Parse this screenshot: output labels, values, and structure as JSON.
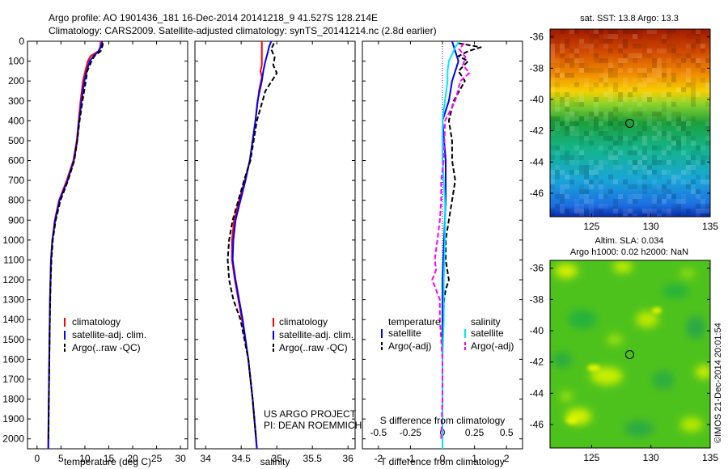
{
  "header": {
    "line1": "Argo profile: AO 1901436_181 16-Dec-2014 20141218_9 41.527S 128.214E",
    "line2": "Climatology: CARS2009. Satellite-adjusted climatology: synTS_20141214.nc (2.8d earlier)"
  },
  "colors": {
    "climatology": "#ff0000",
    "satellite": "#0000ff",
    "argo": "#000000",
    "salinity_satellite": "#00e5ff",
    "salinity_argo": "#ff00ff"
  },
  "chart_data": [
    {
      "id": "temp",
      "type": "line",
      "xlabel": "temperature (deg C)",
      "ylabel": "",
      "xlim": [
        -2,
        31.5
      ],
      "ylim": [
        2050,
        0
      ],
      "xticks": [
        0,
        5,
        10,
        15,
        20,
        25,
        30
      ],
      "yticks": [
        0,
        100,
        200,
        300,
        400,
        500,
        600,
        700,
        800,
        900,
        1000,
        1100,
        1200,
        1300,
        1400,
        1500,
        1600,
        1700,
        1800,
        1900,
        2000
      ],
      "legend": [
        "climatology",
        "satellite-adj. clim.",
        "Argo(..raw -QC)"
      ],
      "legend_position": "lower-center",
      "series": [
        {
          "name": "climatology",
          "color": "#ff0000",
          "dash": "none",
          "depth": [
            0,
            10,
            30,
            50,
            75,
            100,
            150,
            200,
            300,
            400,
            500,
            600,
            700,
            800,
            900,
            1000,
            1100,
            1200,
            1300,
            1500,
            1700,
            1900,
            2050
          ],
          "values": [
            13.3,
            13.3,
            13.2,
            12.8,
            11.2,
            10.6,
            10.1,
            9.6,
            9.1,
            8.7,
            8.3,
            7.6,
            6.2,
            4.6,
            3.7,
            3.2,
            2.9,
            2.8,
            2.7,
            2.6,
            2.5,
            2.4,
            2.35
          ]
        },
        {
          "name": "satellite-adj. clim.",
          "color": "#0000ff",
          "dash": "none",
          "depth": [
            0,
            10,
            30,
            50,
            75,
            100,
            150,
            200,
            300,
            400,
            500,
            600,
            700,
            800,
            900,
            1000,
            1100,
            1200,
            1300,
            1500,
            1700,
            1900,
            2050
          ],
          "values": [
            13.6,
            13.6,
            13.3,
            12.9,
            11.8,
            11.0,
            10.4,
            9.9,
            9.3,
            8.8,
            8.4,
            7.7,
            6.4,
            4.7,
            3.8,
            3.2,
            2.9,
            2.8,
            2.7,
            2.6,
            2.5,
            2.4,
            2.35
          ]
        },
        {
          "name": "Argo(..raw -QC)",
          "color": "#000000",
          "dash": "6,3",
          "depth": [
            10,
            30,
            50,
            75,
            100,
            150,
            200,
            300,
            400,
            500,
            600,
            700,
            800,
            900,
            1000,
            1100,
            1200,
            1300,
            1500,
            1700,
            1900,
            2000
          ],
          "values": [
            13.8,
            13.6,
            13.3,
            12.0,
            11.4,
            10.5,
            10.2,
            9.5,
            8.9,
            8.4,
            7.8,
            6.5,
            4.9,
            3.9,
            3.3,
            3.0,
            2.85,
            2.75,
            2.62,
            2.52,
            2.43,
            2.38
          ]
        }
      ]
    },
    {
      "id": "sal",
      "type": "line",
      "xlabel": "salinity",
      "ylabel": "",
      "xlim": [
        33.85,
        36.1
      ],
      "ylim": [
        2050,
        0
      ],
      "xticks": [
        "34",
        "34.5",
        "35",
        "35.5",
        "36"
      ],
      "legend": [
        "climatology",
        "satellite-adj. clim.",
        "Argo(..raw -QC)"
      ],
      "legend_position": "lower-right",
      "annotation": [
        "US ARGO PROJECT",
        "PI: DEAN ROEMMICH"
      ],
      "series": [
        {
          "name": "climatology",
          "color": "#ff0000",
          "dash": "none",
          "depth": [
            0,
            50,
            120,
            150,
            180,
            250,
            400,
            600,
            700,
            800,
            900,
            1000,
            1100,
            1200,
            1400,
            1600,
            1800,
            2050
          ],
          "values": [
            34.79,
            34.79,
            34.79,
            34.77,
            34.79,
            34.75,
            34.7,
            34.62,
            34.55,
            34.47,
            34.4,
            34.37,
            34.37,
            34.41,
            34.51,
            34.6,
            34.66,
            34.72
          ]
        },
        {
          "name": "satellite-adj. clim.",
          "color": "#0000ff",
          "dash": "none",
          "depth": [
            0,
            30,
            60,
            100,
            150,
            200,
            300,
            400,
            600,
            700,
            800,
            900,
            1000,
            1100,
            1200,
            1400,
            1600,
            1800,
            2050
          ],
          "values": [
            34.92,
            34.89,
            34.87,
            34.84,
            34.81,
            34.79,
            34.73,
            34.7,
            34.62,
            34.56,
            34.49,
            34.42,
            34.39,
            34.38,
            34.42,
            34.52,
            34.6,
            34.66,
            34.72
          ]
        },
        {
          "name": "Argo(..raw -QC)",
          "color": "#000000",
          "dash": "6,3",
          "depth": [
            10,
            40,
            80,
            120,
            160,
            200,
            250,
            300,
            400,
            600,
            700,
            800,
            900,
            1000,
            1100,
            1150,
            1200,
            1300,
            1400,
            1600,
            1800,
            2000
          ],
          "values": [
            34.96,
            34.92,
            34.97,
            34.95,
            35.0,
            34.93,
            34.84,
            34.8,
            34.72,
            34.63,
            34.54,
            34.46,
            34.38,
            34.33,
            34.31,
            34.32,
            34.33,
            34.39,
            34.49,
            34.6,
            34.66,
            34.71
          ]
        }
      ]
    },
    {
      "id": "diff",
      "type": "line",
      "xlabel": "T difference from climatology",
      "x2label": "S difference from climatology",
      "ylabel": "",
      "xlim": [
        -2.5,
        2.5
      ],
      "x2lim": [
        -0.625,
        0.625
      ],
      "ylim": [
        2050,
        0
      ],
      "xticks": [
        "-2",
        "-1",
        "0",
        "1",
        "2"
      ],
      "x2ticks": [
        "-0.5",
        "-0.25",
        "0",
        "0.25",
        "0.5"
      ],
      "legend_groups": [
        {
          "title": "temperature",
          "items": [
            "satellite",
            "Argo(-adj)"
          ]
        },
        {
          "title": "salinity",
          "items": [
            "satellite",
            "Argo(-adj)"
          ]
        }
      ],
      "series": [
        {
          "name": "temperature satellite",
          "color": "#0000ff",
          "dash": "none",
          "width": 2,
          "depth": [
            0,
            50,
            100,
            200,
            300,
            400,
            500,
            600,
            800,
            1000,
            1200,
            1400,
            1600,
            1800,
            2050
          ],
          "values": [
            0.3,
            0.4,
            0.5,
            0.3,
            0.2,
            0.0,
            0.05,
            0.1,
            0.1,
            0.05,
            0.0,
            0.0,
            0.0,
            0.0,
            0.0
          ]
        },
        {
          "name": "temperature Argo(-adj)",
          "color": "#000000",
          "dash": "6,3",
          "width": 2,
          "depth": [
            10,
            30,
            50,
            75,
            100,
            150,
            200,
            300,
            400,
            500,
            600,
            700,
            800,
            900,
            1000,
            1100,
            1200,
            1250,
            1300,
            1500,
            1700,
            1900,
            2000
          ],
          "values": [
            0.5,
            1.2,
            0.8,
            0.5,
            0.8,
            0.5,
            0.7,
            0.35,
            0.2,
            0.3,
            0.3,
            0.4,
            0.3,
            0.2,
            0.1,
            0.1,
            0.2,
            0.1,
            0.05,
            0.0,
            0.0,
            0.0,
            0.0
          ]
        },
        {
          "name": "salinity satellite",
          "color": "#00e5ff",
          "dash": "none",
          "width": 2,
          "depth": [
            0,
            30,
            60,
            100,
            150,
            200,
            400,
            600,
            800,
            1000,
            1200,
            1400,
            1600,
            1800,
            2050
          ],
          "values": [
            0.13,
            0.1,
            0.08,
            0.05,
            0.04,
            0.04,
            0.0,
            0.0,
            0.02,
            0.02,
            0.01,
            0.01,
            0.0,
            0.0,
            0.0
          ]
        },
        {
          "name": "salinity Argo(-adj)",
          "color": "#ff00ff",
          "dash": "6,3",
          "width": 2,
          "depth": [
            10,
            40,
            80,
            120,
            160,
            200,
            300,
            400,
            600,
            700,
            800,
            900,
            1000,
            1100,
            1150,
            1200,
            1300,
            1400,
            1600,
            1800,
            2000
          ],
          "values": [
            0.17,
            0.13,
            0.18,
            0.16,
            0.21,
            0.14,
            0.1,
            0.02,
            0.01,
            -0.01,
            -0.01,
            -0.02,
            -0.04,
            -0.06,
            -0.05,
            -0.08,
            -0.02,
            -0.02,
            0.0,
            0.0,
            -0.01
          ]
        }
      ]
    },
    {
      "id": "sst_map",
      "type": "heatmap",
      "title": "sat. SST: 13.8 Argo: 13.3",
      "xlim": [
        121.5,
        135
      ],
      "ylim": [
        -47.5,
        -35.5
      ],
      "xticks": [
        "125",
        "130",
        "135"
      ],
      "yticks": [
        "-36",
        "-38",
        "-40",
        "-42",
        "-44",
        "-46"
      ],
      "marker": {
        "lon": 128.214,
        "lat": -41.527
      }
    },
    {
      "id": "sla_map",
      "type": "heatmap",
      "title": [
        "Altim. SLA: 0.034",
        "Argo h1000: 0.02 h2000: NaN"
      ],
      "xlim": [
        121.5,
        135
      ],
      "ylim": [
        -47.5,
        -35.5
      ],
      "xticks": [
        "125",
        "130",
        "135"
      ],
      "yticks": [
        "-36",
        "-38",
        "-40",
        "-42",
        "-44",
        "-46"
      ],
      "marker": {
        "lon": 128.214,
        "lat": -41.527
      }
    }
  ],
  "footer": {
    "credit": "©IMOS 21-Dec-2014 20:01:54"
  }
}
